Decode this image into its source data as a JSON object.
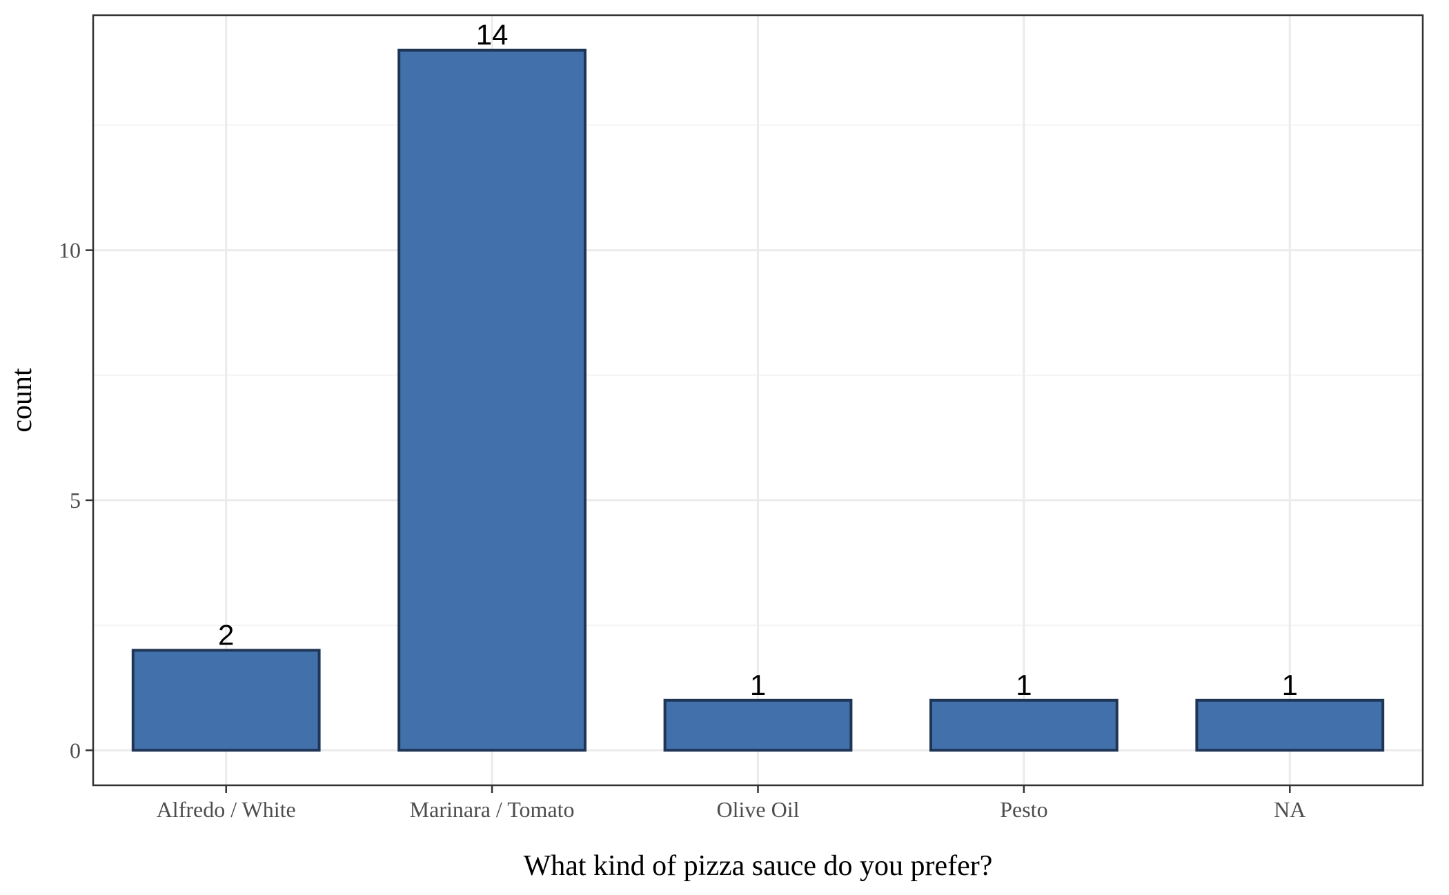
{
  "chart_data": {
    "type": "bar",
    "categories": [
      "Alfredo / White",
      "Marinara / Tomato",
      "Olive Oil",
      "Pesto",
      "NA"
    ],
    "values": [
      2,
      14,
      1,
      1,
      1
    ],
    "data_labels": [
      "2",
      "14",
      "1",
      "1",
      "1"
    ],
    "title": "",
    "xlabel": "What kind of pizza sauce do you prefer?",
    "ylabel": "count",
    "ylim": [
      -0.7,
      14.7
    ],
    "yticks": [
      0,
      5,
      10
    ],
    "ytick_labels": [
      "0",
      "5",
      "10"
    ],
    "grid": true,
    "legend": "none",
    "colors": {
      "bar_fill": "#4270aa",
      "bar_stroke": "#1f3555",
      "grid_major": "#ebebeb",
      "grid_minor": "#f4f4f4",
      "panel_border": "#333333",
      "tick_text": "#4d4d4d"
    }
  }
}
